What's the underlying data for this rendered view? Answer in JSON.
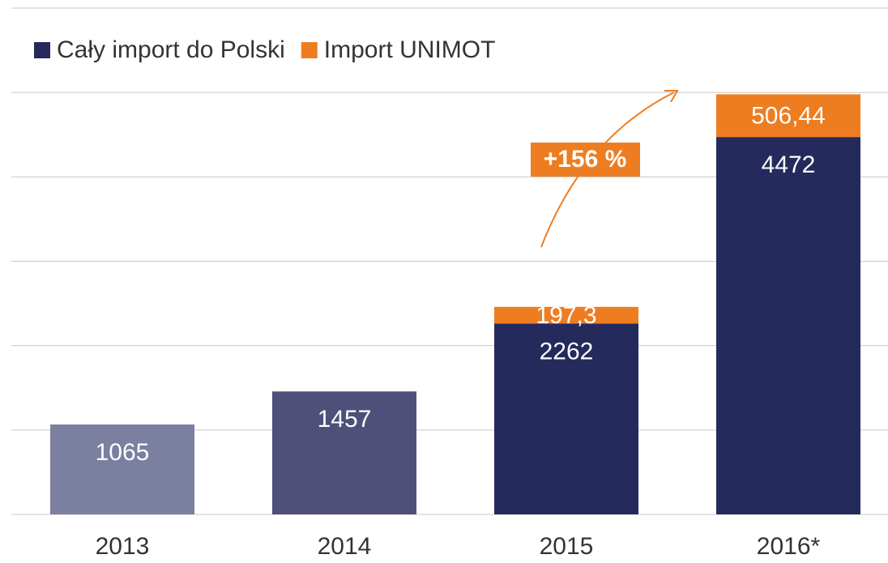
{
  "chart_data": {
    "type": "stacked_bar",
    "categories": [
      "2013",
      "2014",
      "2015",
      "2016*"
    ],
    "series": [
      {
        "name": "Cały import do Polski",
        "color": "#252a5c",
        "colors": [
          "#7b7fa0",
          "#4e5079",
          "#252a5c",
          "#252a5c"
        ],
        "values": [
          1065,
          1457,
          2262,
          4472
        ]
      },
      {
        "name": "Import UNIMOT",
        "color": "#ee7d21",
        "values": [
          null,
          null,
          197.3,
          506.44
        ],
        "value_labels": [
          null,
          null,
          "197,3",
          "506,44"
        ]
      }
    ],
    "annotations": [
      {
        "text": "+156 %"
      }
    ],
    "ylim": [
      0,
      6000
    ],
    "yticks": [
      0,
      1000,
      2000,
      3000,
      4000,
      5000,
      6000
    ],
    "grid": true,
    "legend": "top-left"
  }
}
